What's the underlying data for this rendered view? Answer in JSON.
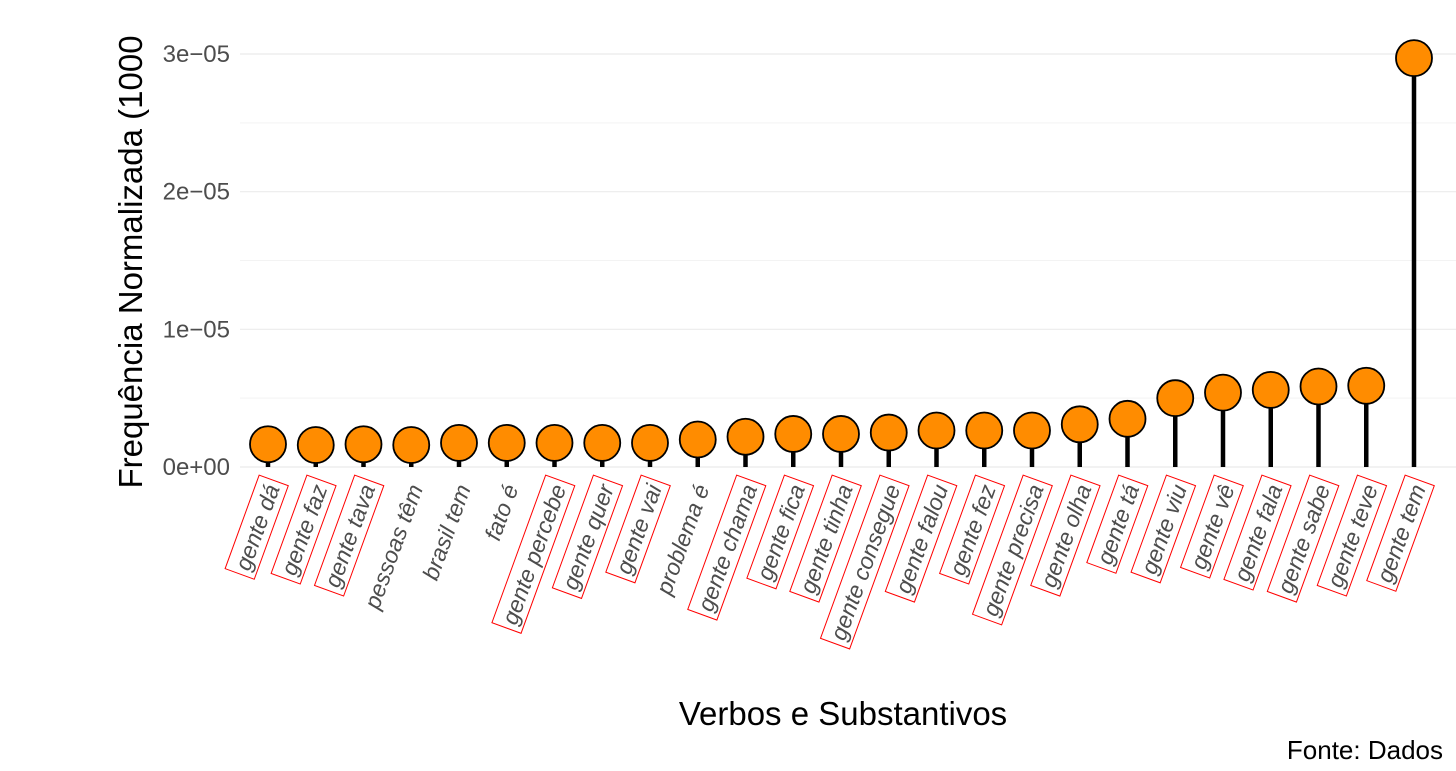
{
  "chart_data": {
    "type": "lollipop",
    "xlabel": "Verbos e Substantivos",
    "ylabel": "Frequência Normalizada (1000",
    "caption": "Fonte: Dados",
    "ylim": [
      0,
      3.1e-05
    ],
    "yticks": [
      {
        "value": 0,
        "label": "0e+00"
      },
      {
        "value": 1e-05,
        "label": "1e−05"
      },
      {
        "value": 2e-05,
        "label": "2e−05"
      },
      {
        "value": 3e-05,
        "label": "3e−05"
      }
    ],
    "grid": true,
    "marker_color": "#FF8C00",
    "stem_color": "#000000",
    "label_box_color": "#FF0000",
    "categories": [
      "gente dá",
      "gente faz",
      "gente tava",
      "pessoas têm",
      "brasil tem",
      "fato é",
      "gente percebe",
      "gente quer",
      "gente vai",
      "problema é",
      "gente chama",
      "gente fica",
      "gente tinha",
      "gente consegue",
      "gente falou",
      "gente fez",
      "gente precisa",
      "gente olha",
      "gente tá",
      "gente viu",
      "gente vê",
      "gente fala",
      "gente sabe",
      "gente teve",
      "gente tem"
    ],
    "values": [
      1.65e-06,
      1.6e-06,
      1.65e-06,
      1.6e-06,
      1.75e-06,
      1.75e-06,
      1.75e-06,
      1.75e-06,
      1.75e-06,
      2e-06,
      2.2e-06,
      2.4e-06,
      2.4e-06,
      2.5e-06,
      2.65e-06,
      2.65e-06,
      2.65e-06,
      3.1e-06,
      3.5e-06,
      5e-06,
      5.4e-06,
      5.6e-06,
      5.85e-06,
      5.9e-06,
      2.97e-05
    ],
    "boxed": [
      true,
      true,
      true,
      false,
      false,
      false,
      true,
      true,
      true,
      false,
      true,
      true,
      true,
      true,
      true,
      true,
      true,
      true,
      true,
      true,
      true,
      true,
      true,
      true,
      true
    ]
  }
}
